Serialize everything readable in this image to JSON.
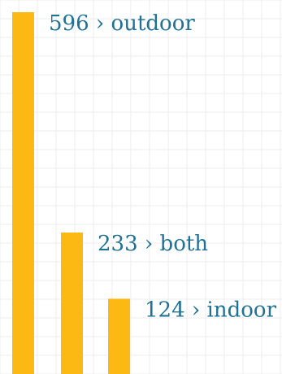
{
  "chart_data": {
    "type": "bar",
    "orientation": "vertical",
    "title": "",
    "xlabel": "",
    "ylabel": "",
    "categories": [
      "outdoor",
      "both",
      "indoor"
    ],
    "values": [
      596,
      233,
      124
    ],
    "labels": [
      "596 › outdoor",
      "233 › both",
      "124 › indoor"
    ],
    "ylim": [
      0,
      600
    ],
    "grid": true,
    "legend": "none",
    "colors": {
      "bar": "#FDB913",
      "label": "#1F7196",
      "grid": "#EEEEEE",
      "background": "#FFFFFF"
    }
  }
}
